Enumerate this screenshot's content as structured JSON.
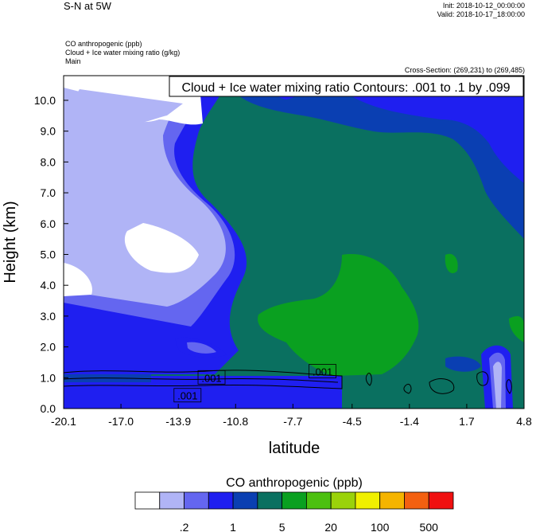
{
  "header": {
    "title": "S-N at 5W",
    "init": "Init: 2018-10-12_00:00:00",
    "valid": "Valid: 2018-10-17_18:00:00",
    "field1": "CO anthropogenic   (ppb)",
    "field2": "Cloud + Ice water mixing ratio   (g/kg)",
    "field3": "Main",
    "cross_section": "Cross-Section: (269,231) to (269,485)"
  },
  "chart_data": {
    "type": "heatmap",
    "contour_label": "Cloud + Ice water mixing ratio Contours: .001 to .1 by .099",
    "xlabel": "latitude",
    "ylabel": "Height (km)",
    "xlim": [
      -20.1,
      4.8
    ],
    "ylim": [
      0.0,
      10.8
    ],
    "x_ticks": [
      "-20.1",
      "-17.0",
      "-13.9",
      "-10.8",
      "-7.7",
      "-4.5",
      "-1.4",
      "1.7",
      "4.8"
    ],
    "y_ticks": [
      "0.0",
      "1.0",
      "2.0",
      "3.0",
      "4.0",
      "5.0",
      "6.0",
      "7.0",
      "8.0",
      "9.0",
      "10.0"
    ],
    "contour_labels": [
      {
        "text": ".001",
        "x": -12.1,
        "y": 1.0
      },
      {
        "text": ".001",
        "x": -13.4,
        "y": 0.42
      },
      {
        "text": ".001",
        "x": -6.1,
        "y": 1.2
      }
    ],
    "colorbar": {
      "title": "CO anthropogenic  (ppb)",
      "colors": [
        "#ffffff",
        "#b0b4f6",
        "#6466f0",
        "#1f1ff0",
        "#0a3fb2",
        "#0a7060",
        "#0aa020",
        "#4cc010",
        "#9ad20a",
        "#f0f000",
        "#f5b400",
        "#f36010",
        "#f01010"
      ],
      "labels": [
        ".2",
        "1",
        "5",
        "20",
        "100",
        "500"
      ]
    }
  }
}
